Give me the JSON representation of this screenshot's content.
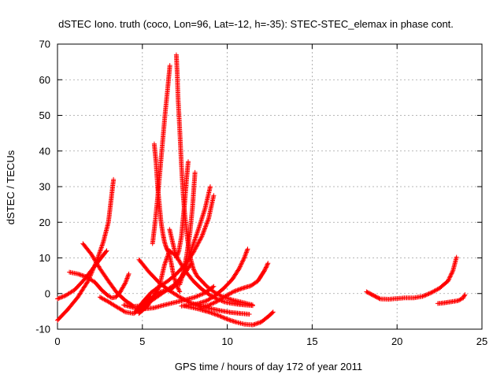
{
  "chart_data": {
    "type": "scatter",
    "title": "dSTEC Iono. truth (coco, Lon=96, Lat=-12, h=-35): STEC-STEC_elemax in phase cont.",
    "xlabel": "GPS time / hours of day 172 of year 2011",
    "ylabel": "dSTEC  / TECUs",
    "xlim": [
      0,
      25
    ],
    "ylim": [
      -10,
      70
    ],
    "xticks": [
      0,
      5,
      10,
      15,
      20,
      25
    ],
    "yticks": [
      -10,
      0,
      10,
      20,
      30,
      40,
      50,
      60,
      70
    ],
    "grid": true,
    "marker": "+",
    "color": "#ff0000",
    "series": [
      {
        "x": [
          0.0,
          0.6,
          1.2,
          1.8,
          2.3,
          2.7,
          3.0,
          3.15,
          3.3
        ],
        "y": [
          -7.5,
          -4.5,
          -1.0,
          3.5,
          9.0,
          14.5,
          20.0,
          26.0,
          32.0
        ]
      },
      {
        "x": [
          0.0,
          0.5,
          1.0,
          1.5,
          2.0,
          2.4,
          2.7,
          2.9
        ],
        "y": [
          -1.5,
          -0.5,
          1.0,
          3.5,
          6.5,
          9.0,
          10.8,
          12.0
        ]
      },
      {
        "x": [
          0.7,
          1.2,
          1.7,
          2.2,
          2.6,
          2.95,
          3.2,
          3.45,
          3.7,
          4.0,
          4.2
        ],
        "y": [
          6.0,
          5.5,
          4.7,
          3.2,
          1.0,
          -0.5,
          -1.2,
          -1.0,
          0.5,
          3.0,
          5.5
        ]
      },
      {
        "x": [
          1.5,
          2.0,
          2.5,
          3.0,
          3.5,
          4.0,
          4.5,
          5.0,
          5.6,
          6.2,
          6.9,
          7.4,
          7.9
        ],
        "y": [
          14.0,
          11.0,
          7.0,
          3.5,
          0.2,
          -2.0,
          -3.6,
          -3.4,
          -1.8,
          0.2,
          2.5,
          5.0,
          8.5
        ]
      },
      {
        "x": [
          2.5,
          3.0,
          3.5,
          4.0,
          4.5,
          5.0,
          5.5
        ],
        "y": [
          -1.0,
          -2.3,
          -3.8,
          -5.2,
          -5.6,
          -3.8,
          -1.0
        ]
      },
      {
        "x": [
          4.8,
          5.3,
          5.7,
          6.0,
          6.3,
          6.6,
          7.0,
          7.5,
          8.0,
          8.5,
          9.0,
          9.4,
          9.8,
          10.2,
          10.6,
          11.0,
          11.5
        ],
        "y": [
          -5.6,
          -3.5,
          -0.5,
          2.0,
          8.0,
          12.0,
          10.5,
          6.5,
          3.5,
          1.2,
          -0.5,
          -1.5,
          -2.3,
          -2.7,
          -3.0,
          -3.2,
          -3.4
        ]
      },
      {
        "x": [
          4.6,
          5.0,
          5.5,
          6.0,
          6.5,
          7.0,
          7.5,
          8.0,
          8.5,
          8.9,
          9.2
        ],
        "y": [
          -5.0,
          -2.5,
          0.2,
          2.0,
          3.5,
          5.5,
          8.0,
          11.5,
          16.0,
          21.0,
          27.5
        ]
      },
      {
        "x": [
          4.8,
          5.3,
          5.8,
          6.3,
          6.7,
          7.1,
          7.5,
          7.9,
          8.3,
          8.7,
          9.0
        ],
        "y": [
          -5.3,
          -2.5,
          0.0,
          0.8,
          1.2,
          3.0,
          6.5,
          12.5,
          18.0,
          24.0,
          30.0
        ]
      },
      {
        "x": [
          5.7,
          5.8,
          5.9,
          6.0,
          6.1,
          6.2,
          6.3,
          6.4,
          6.5,
          6.6,
          6.7,
          6.8,
          6.9,
          7.05,
          7.2
        ],
        "y": [
          42.0,
          37.0,
          30.0,
          25.0,
          20.0,
          17.0,
          14.5,
          13.0,
          12.0,
          10.5,
          8.5,
          6.0,
          4.0,
          2.0,
          0.5
        ]
      },
      {
        "x": [
          5.6,
          5.75,
          5.9,
          6.05,
          6.2,
          6.35,
          6.5,
          6.62
        ],
        "y": [
          14.0,
          20.0,
          27.0,
          35.0,
          43.0,
          51.0,
          58.0,
          64.0
        ]
      },
      {
        "x": [
          7.0,
          7.05,
          7.1,
          7.2,
          7.3,
          7.4,
          7.5,
          7.65,
          7.8,
          8.0,
          8.2,
          8.5,
          8.8,
          9.2,
          9.7,
          10.3,
          11.0,
          11.5
        ],
        "y": [
          67.0,
          62.0,
          55.0,
          46.0,
          36.0,
          28.0,
          22.0,
          15.5,
          10.5,
          7.0,
          5.0,
          3.5,
          2.0,
          0.5,
          -0.8,
          -1.8,
          -2.6,
          -3.2
        ]
      },
      {
        "x": [
          6.6,
          6.8,
          7.0,
          7.15,
          7.3,
          7.4,
          7.5,
          7.6,
          7.7
        ],
        "y": [
          18.0,
          14.0,
          10.0,
          12.0,
          16.0,
          21.0,
          26.0,
          32.0,
          37.0
        ]
      },
      {
        "x": [
          7.2,
          7.4,
          7.6,
          7.8,
          7.95,
          8.1
        ],
        "y": [
          2.5,
          5.5,
          10.5,
          17.0,
          24.0,
          34.0
        ]
      },
      {
        "x": [
          3.9,
          4.5,
          5.1,
          5.7,
          6.3,
          6.9,
          7.5,
          8.1,
          8.7,
          9.2
        ],
        "y": [
          -3.2,
          -4.0,
          -4.3,
          -4.0,
          -3.2,
          -2.5,
          -1.8,
          -1.0,
          0.2,
          2.0
        ]
      },
      {
        "x": [
          4.8,
          5.4,
          6.0,
          6.6,
          7.2,
          7.8,
          8.4,
          9.0,
          9.6,
          10.2,
          10.8,
          11.3
        ],
        "y": [
          9.5,
          6.0,
          3.0,
          0.8,
          -1.0,
          -2.5,
          -3.5,
          -4.2,
          -4.8,
          -5.3,
          -5.6,
          -5.8
        ]
      },
      {
        "x": [
          7.5,
          8.0,
          8.5,
          9.0,
          9.5,
          10.0,
          10.5,
          11.0,
          11.5,
          12.0,
          12.4,
          12.7
        ],
        "y": [
          -3.5,
          -4.0,
          -4.6,
          -5.3,
          -6.2,
          -7.2,
          -8.0,
          -8.6,
          -8.8,
          -8.0,
          -6.5,
          -5.2
        ]
      },
      {
        "x": [
          7.3,
          7.8,
          8.3,
          8.8,
          9.3,
          9.8,
          10.3,
          10.7,
          11.0,
          11.2
        ],
        "y": [
          -3.5,
          -3.2,
          -2.8,
          -2.0,
          -0.5,
          1.5,
          4.0,
          7.0,
          10.0,
          12.5
        ]
      },
      {
        "x": [
          8.4,
          8.9,
          9.4,
          9.9,
          10.4,
          10.9,
          11.4,
          11.8,
          12.0,
          12.2,
          12.4
        ],
        "y": [
          -3.8,
          -3.3,
          -2.2,
          -0.7,
          0.6,
          1.5,
          2.2,
          3.5,
          5.0,
          6.5,
          8.5
        ]
      },
      {
        "x": [
          18.2,
          18.6,
          19.0,
          19.5,
          20.0,
          20.5,
          21.0,
          21.5,
          22.0,
          22.5,
          23.0,
          23.3,
          23.5
        ],
        "y": [
          0.5,
          -0.5,
          -1.5,
          -1.6,
          -1.4,
          -1.2,
          -1.2,
          -0.8,
          0.2,
          1.5,
          3.5,
          6.5,
          10.2
        ]
      },
      {
        "x": [
          22.4,
          22.8,
          23.2,
          23.6,
          23.9,
          24.0
        ],
        "y": [
          -2.8,
          -2.6,
          -2.3,
          -2.0,
          -1.2,
          -0.3
        ]
      }
    ]
  }
}
